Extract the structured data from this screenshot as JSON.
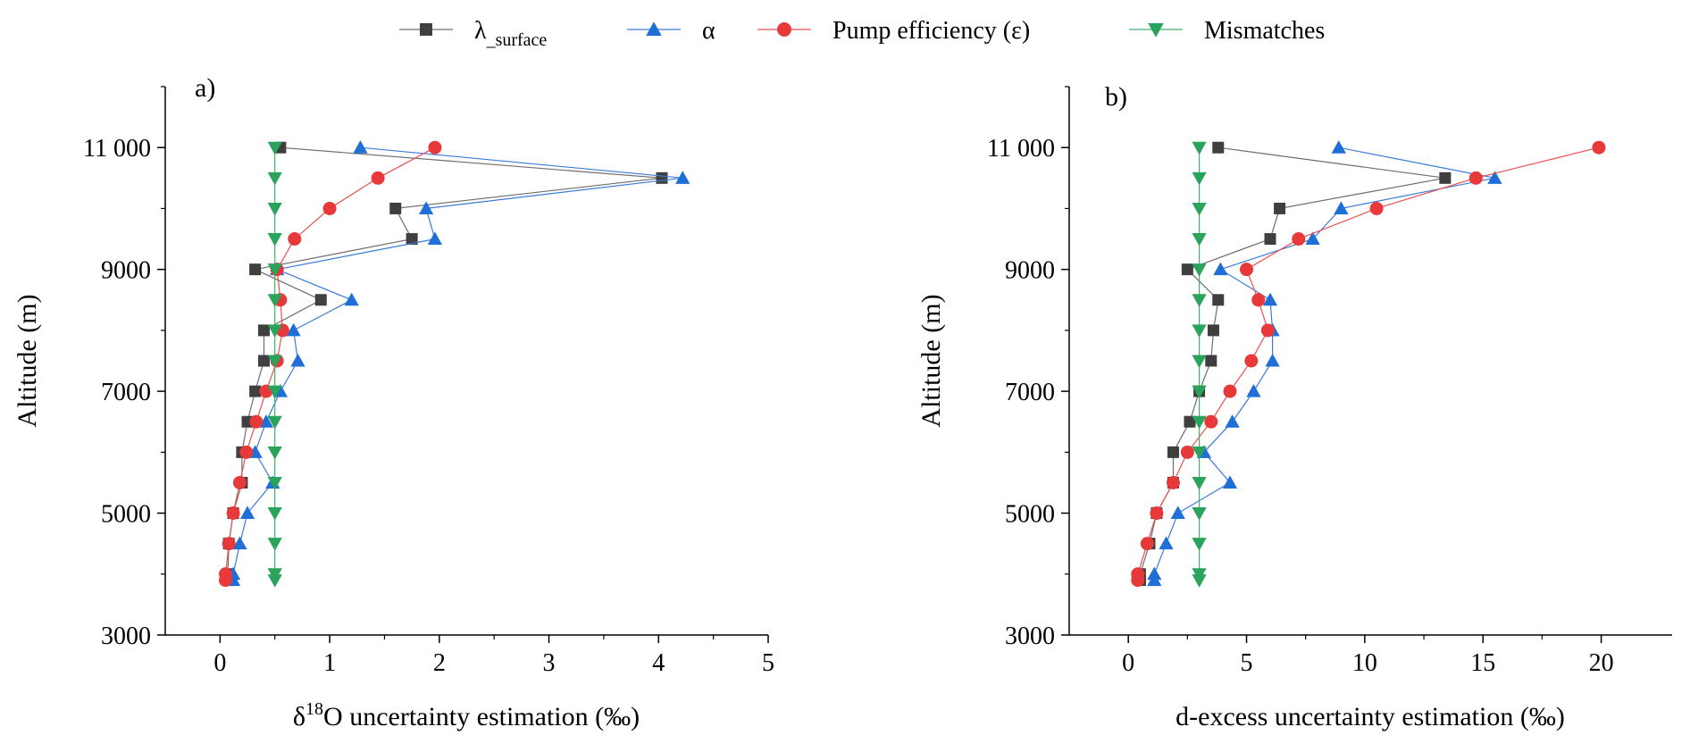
{
  "legend": [
    {
      "label": "λ",
      "suffix": "_surface",
      "marker": "square",
      "color": "#3f3f3f",
      "line": "#6d6d6d"
    },
    {
      "label": "α",
      "suffix": "",
      "marker": "triangle-up",
      "color": "#1f6fd6",
      "line": "#3a7bd8"
    },
    {
      "label": "Pump efficiency (ε)",
      "suffix": "",
      "marker": "circle",
      "color": "#e8393a",
      "line": "#e85050"
    },
    {
      "label": "Mismatches",
      "suffix": "",
      "marker": "triangle-down",
      "color": "#2aa35c",
      "line": "#3cb56a"
    }
  ],
  "chart_data": [
    {
      "type": "line",
      "panel_label": "a)",
      "xlabel_prefix": "δ",
      "xlabel_sup": "18",
      "xlabel_rest": "O uncertainty estimation (‰)",
      "ylabel": "Altitude (m)",
      "xlim": [
        -0.5,
        5
      ],
      "ylim": [
        3000,
        12000
      ],
      "xticks": [
        0,
        1,
        2,
        3,
        4,
        5
      ],
      "xtick_labels": [
        "0",
        "1",
        "2",
        "3",
        "4",
        "5"
      ],
      "yticks": [
        3000,
        5000,
        7000,
        9000,
        11000
      ],
      "ytick_labels": [
        "3000",
        "5000",
        "7000",
        "9000",
        "11 000"
      ],
      "altitudes": [
        11000,
        10500,
        10000,
        9500,
        9000,
        8500,
        8000,
        7500,
        7000,
        6500,
        6000,
        5500,
        5000,
        4500,
        4000,
        3900
      ],
      "series": [
        {
          "name": "λ_surface",
          "values": [
            0.55,
            4.03,
            1.6,
            1.75,
            0.32,
            0.92,
            0.4,
            0.4,
            0.32,
            0.25,
            0.2,
            0.2,
            0.12,
            0.08,
            0.07,
            0.07
          ]
        },
        {
          "name": "α",
          "values": [
            1.28,
            4.22,
            1.88,
            1.96,
            0.52,
            1.2,
            0.67,
            0.71,
            0.55,
            0.42,
            0.32,
            0.48,
            0.25,
            0.18,
            0.12,
            0.12
          ]
        },
        {
          "name": "Pump efficiency (ε)",
          "values": [
            1.96,
            1.44,
            1.0,
            0.68,
            0.52,
            0.55,
            0.57,
            0.52,
            0.42,
            0.33,
            0.24,
            0.18,
            0.12,
            0.08,
            0.05,
            0.05
          ]
        },
        {
          "name": "Mismatches",
          "values": [
            0.5,
            0.5,
            0.5,
            0.5,
            0.5,
            0.5,
            0.5,
            0.5,
            0.5,
            0.5,
            0.5,
            0.5,
            0.5,
            0.5,
            0.5,
            0.5
          ]
        }
      ]
    },
    {
      "type": "line",
      "panel_label": "b)",
      "xlabel_prefix": "",
      "xlabel_sup": "",
      "xlabel_rest": "d-excess uncertainty estimation (‰)",
      "ylabel": "Altitude (m)",
      "xlim": [
        -2.5,
        23
      ],
      "ylim": [
        3000,
        12000
      ],
      "xticks": [
        0,
        5,
        10,
        15,
        20
      ],
      "xtick_labels": [
        "0",
        "5",
        "10",
        "15",
        "20"
      ],
      "yticks": [
        3000,
        5000,
        7000,
        9000,
        11000
      ],
      "ytick_labels": [
        "3000",
        "5000",
        "7000",
        "9000",
        "11 000"
      ],
      "altitudes": [
        11000,
        10500,
        10000,
        9500,
        9000,
        8500,
        8000,
        7500,
        7000,
        6500,
        6000,
        5500,
        5000,
        4500,
        4000,
        3900
      ],
      "series": [
        {
          "name": "λ_surface",
          "values": [
            3.8,
            13.4,
            6.4,
            6.0,
            2.5,
            3.8,
            3.6,
            3.5,
            3.0,
            2.6,
            1.9,
            1.9,
            1.2,
            0.9,
            0.5,
            0.5
          ]
        },
        {
          "name": "α",
          "values": [
            8.9,
            15.5,
            9.0,
            7.8,
            3.9,
            6.0,
            6.1,
            6.1,
            5.3,
            4.4,
            3.2,
            4.3,
            2.1,
            1.6,
            1.1,
            1.1
          ]
        },
        {
          "name": "Pump efficiency (ε)",
          "values": [
            19.9,
            14.7,
            10.5,
            7.2,
            5.0,
            5.5,
            5.9,
            5.2,
            4.3,
            3.5,
            2.5,
            1.9,
            1.2,
            0.8,
            0.4,
            0.4
          ]
        },
        {
          "name": "Mismatches",
          "values": [
            3.0,
            3.0,
            3.0,
            3.0,
            3.0,
            3.0,
            3.0,
            3.0,
            3.0,
            3.0,
            3.0,
            3.0,
            3.0,
            3.0,
            3.0,
            3.0
          ]
        }
      ]
    }
  ]
}
